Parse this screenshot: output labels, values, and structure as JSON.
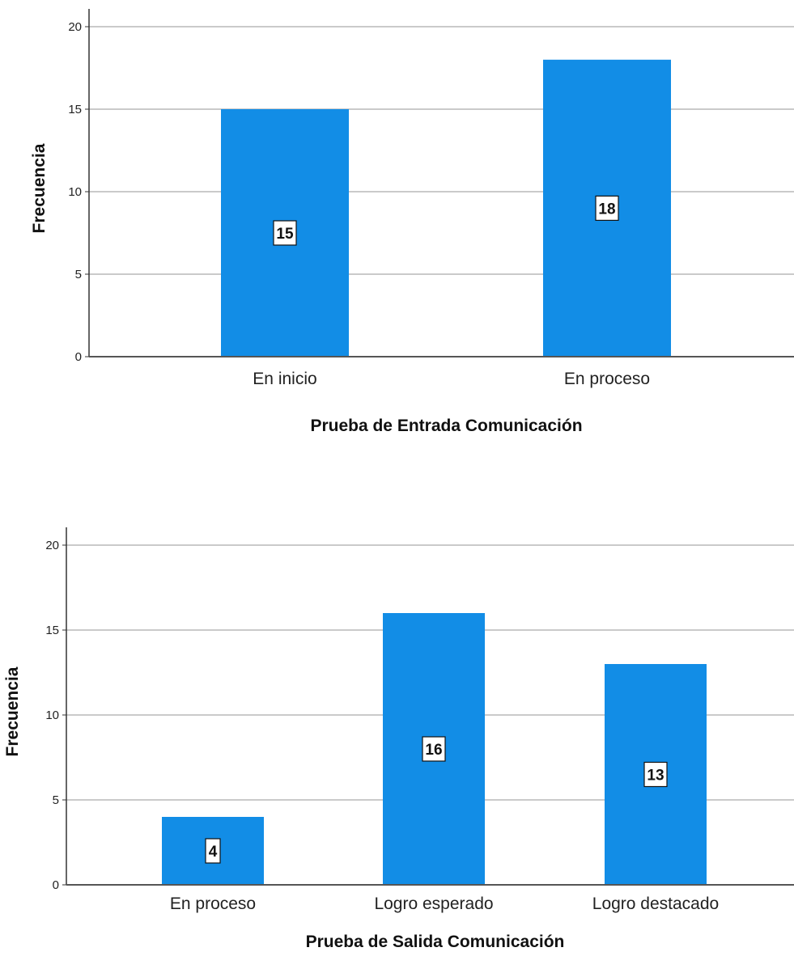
{
  "chart_data": [
    {
      "type": "bar",
      "categories": [
        "En inicio",
        "En proceso"
      ],
      "values": [
        15,
        18
      ],
      "xlabel": "Prueba de Entrada Comunicación",
      "ylabel": "Frecuencia",
      "ylim": [
        0,
        21
      ],
      "yticks": [
        0,
        5,
        10,
        15,
        20
      ],
      "grid": true,
      "bar_color": "#128de6",
      "data_labels": true
    },
    {
      "type": "bar",
      "categories": [
        "En proceso",
        "Logro esperado",
        "Logro destacado"
      ],
      "values": [
        4,
        16,
        13
      ],
      "xlabel": "Prueba de Salida Comunicación",
      "ylabel": "Frecuencia",
      "ylim": [
        0,
        21
      ],
      "yticks": [
        0,
        5,
        10,
        15,
        20
      ],
      "grid": true,
      "bar_color": "#128de6",
      "data_labels": true
    }
  ]
}
